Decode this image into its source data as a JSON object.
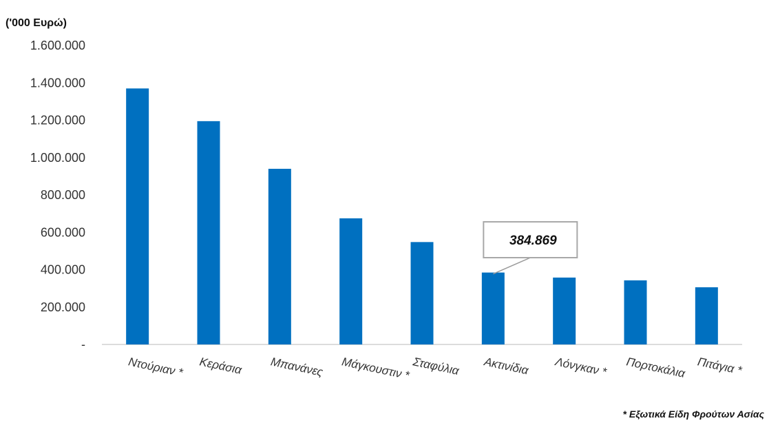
{
  "chart_data": {
    "type": "bar",
    "ylabel": "('000 Ευρώ)",
    "categories": [
      "Ντούριαν *",
      "Κεράσια",
      "Μπανάνες",
      "Μάγκουστιν *",
      "Σταφύλια",
      "Ακτινίδια",
      "Λόνγκαν *",
      "Πορτοκάλια",
      "Πιτάγια *"
    ],
    "values": [
      1370000,
      1195000,
      940000,
      675000,
      548000,
      384869,
      358000,
      343000,
      306000
    ],
    "ylim": [
      0,
      1600000
    ],
    "y_ticks": [
      {
        "value": 0,
        "label": "-"
      },
      {
        "value": 200000,
        "label": "200.000"
      },
      {
        "value": 400000,
        "label": "400.000"
      },
      {
        "value": 600000,
        "label": "600.000"
      },
      {
        "value": 800000,
        "label": "800.000"
      },
      {
        "value": 1000000,
        "label": "1.000.000"
      },
      {
        "value": 1200000,
        "label": "1.200.000"
      },
      {
        "value": 1400000,
        "label": "1.400.000"
      },
      {
        "value": 1600000,
        "label": "1.600.000"
      }
    ],
    "annotation": {
      "category_index": 5,
      "label": "384.869"
    },
    "footnote": "* Εξωτικά Είδη Φρούτων Ασίας",
    "bar_color": "#0070c0",
    "grid": false
  }
}
